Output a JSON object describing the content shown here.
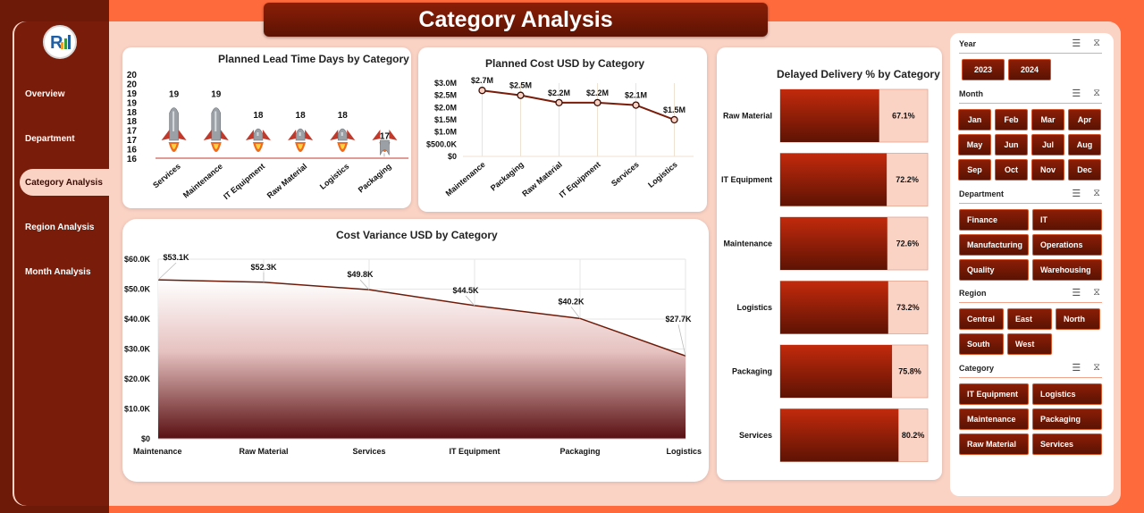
{
  "page": {
    "title": "Category Analysis"
  },
  "nav": {
    "items": [
      {
        "label": "Overview"
      },
      {
        "label": "Department"
      },
      {
        "label": "Category Analysis"
      },
      {
        "label": "Region Analysis"
      },
      {
        "label": "Month Analysis"
      }
    ],
    "active_index": 2
  },
  "colors": {
    "accent": "#ff6a3d",
    "dark": "#6e1a08",
    "bar_fill": "#b8260a",
    "bar_track": "#fbd3c5",
    "panel": "#fbd3c5"
  },
  "charts": {
    "lead_time": {
      "title": "Planned Lead Time Days by Category",
      "chart_data": {
        "type": "bar",
        "categories": [
          "Services",
          "Maintenance",
          "IT Equipment",
          "Raw Material",
          "Logistics",
          "Packaging"
        ],
        "values": [
          19,
          19,
          18,
          18,
          18,
          17
        ],
        "data_labels": [
          "19",
          "19",
          "18",
          "18",
          "18",
          "17"
        ],
        "yticks": [
          "20",
          "20",
          "19",
          "19",
          "18",
          "18",
          "17",
          "17",
          "16",
          "16"
        ],
        "ylim": [
          16,
          20
        ],
        "marker": "rocket-icon"
      }
    },
    "planned_cost": {
      "title": "Planned Cost USD by Category",
      "chart_data": {
        "type": "line",
        "categories": [
          "Maintenance",
          "Packaging",
          "Raw Material",
          "IT Equipment",
          "Services",
          "Logistics"
        ],
        "values": [
          2.7,
          2.5,
          2.2,
          2.2,
          2.1,
          1.5
        ],
        "data_labels": [
          "$2.7M",
          "$2.5M",
          "$2.2M",
          "$2.2M",
          "$2.1M",
          "$1.5M"
        ],
        "yticks": [
          "$3.0M",
          "$2.5M",
          "$2.0M",
          "$1.5M",
          "$1.0M",
          "$500.0K",
          "$0"
        ],
        "ylim": [
          0,
          3.0
        ]
      }
    },
    "cost_variance": {
      "title": "Cost Variance USD by Category",
      "chart_data": {
        "type": "area",
        "categories": [
          "Maintenance",
          "Raw Material",
          "Services",
          "IT Equipment",
          "Packaging",
          "Logistics"
        ],
        "values": [
          53.1,
          52.3,
          49.8,
          44.5,
          40.2,
          27.7
        ],
        "data_labels": [
          "$53.1K",
          "$52.3K",
          "$49.8K",
          "$44.5K",
          "$40.2K",
          "$27.7K"
        ],
        "yticks": [
          "$60.0K",
          "$50.0K",
          "$40.0K",
          "$30.0K",
          "$20.0K",
          "$10.0K",
          "$0"
        ],
        "ylim": [
          0,
          60
        ]
      }
    },
    "delayed": {
      "title": "Delayed Delivery % by Category",
      "chart_data": {
        "type": "bar",
        "orientation": "horizontal",
        "categories": [
          "Raw Material",
          "IT Equipment",
          "Maintenance",
          "Logistics",
          "Packaging",
          "Services"
        ],
        "values": [
          67.1,
          72.2,
          72.6,
          73.2,
          75.8,
          80.2
        ],
        "data_labels": [
          "67.1%",
          "72.2%",
          "72.6%",
          "73.2%",
          "75.8%",
          "80.2%"
        ],
        "xlim": [
          0,
          100
        ]
      }
    }
  },
  "slicers": [
    {
      "title": "Year",
      "items": [
        "2023",
        "2024"
      ]
    },
    {
      "title": "Month",
      "items": [
        "Jan",
        "Feb",
        "Mar",
        "Apr",
        "May",
        "Jun",
        "Jul",
        "Aug",
        "Sep",
        "Oct",
        "Nov",
        "Dec"
      ]
    },
    {
      "title": "Department",
      "items": [
        "Finance",
        "IT",
        "Manufacturing",
        "Operations",
        "Quality",
        "Warehousing"
      ]
    },
    {
      "title": "Region",
      "items": [
        "Central",
        "East",
        "North",
        "South",
        "West"
      ]
    },
    {
      "title": "Category",
      "items": [
        "IT Equipment",
        "Logistics",
        "Maintenance",
        "Packaging",
        "Raw Material",
        "Services"
      ]
    }
  ]
}
